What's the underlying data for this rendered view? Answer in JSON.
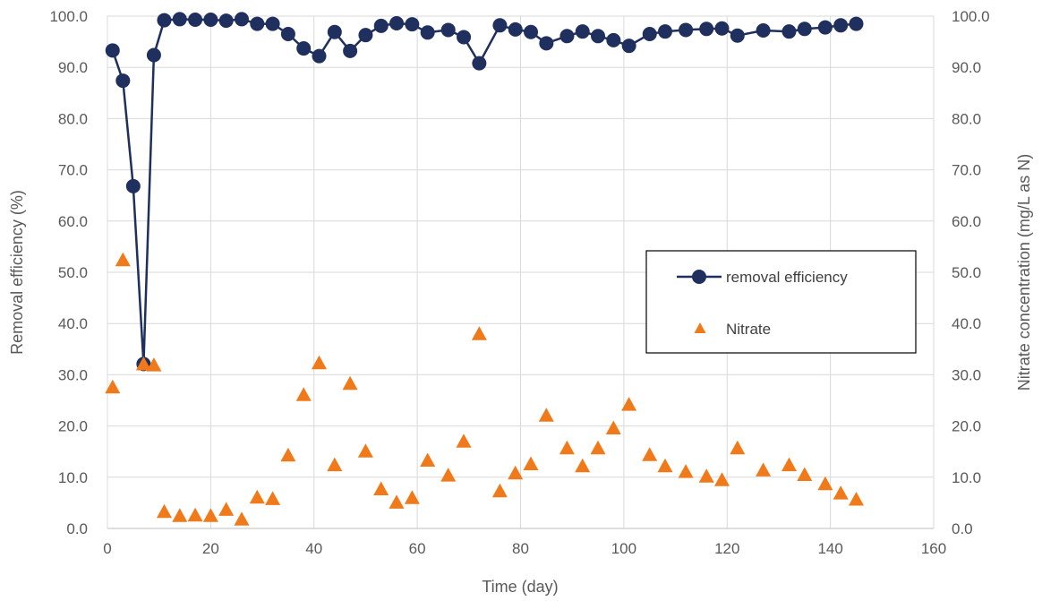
{
  "chart_data": {
    "type": "line",
    "xlabel": "Time (day)",
    "ylabel": "Removal efficiency (%)",
    "y2label": "Nitrate concentration (mg/L as N)",
    "xlim": [
      0,
      160
    ],
    "ylim": [
      0,
      100
    ],
    "y2lim": [
      0,
      100
    ],
    "x_ticks": [
      "0",
      "20",
      "40",
      "60",
      "80",
      "100",
      "120",
      "140",
      "160"
    ],
    "y_ticks": [
      "0.0",
      "10.0",
      "20.0",
      "30.0",
      "40.0",
      "50.0",
      "60.0",
      "70.0",
      "80.0",
      "90.0",
      "100.0"
    ],
    "y2_ticks": [
      "0.0",
      "10.0",
      "20.0",
      "30.0",
      "40.0",
      "50.0",
      "60.0",
      "70.0",
      "80.0",
      "90.0",
      "100.0"
    ],
    "grid": true,
    "legend_position": "right-middle",
    "series": [
      {
        "name": "removal efficiency",
        "kind": "line-marker",
        "marker": "circle",
        "axis": "left",
        "color": "#1f2f5e",
        "x": [
          1,
          3,
          5,
          7,
          9,
          11,
          14,
          17,
          20,
          23,
          26,
          29,
          32,
          35,
          38,
          41,
          44,
          47,
          50,
          53,
          56,
          59,
          62,
          66,
          69,
          72,
          76,
          79,
          82,
          85,
          89,
          92,
          95,
          98,
          101,
          105,
          108,
          112,
          116,
          119,
          122,
          127,
          132,
          135,
          139,
          142,
          145
        ],
        "y": [
          93.3,
          87.4,
          66.8,
          32.1,
          92.4,
          99.2,
          99.4,
          99.3,
          99.3,
          99.1,
          99.4,
          98.5,
          98.5,
          96.5,
          93.7,
          92.2,
          96.9,
          93.2,
          96.3,
          98.1,
          98.6,
          98.4,
          96.8,
          97.3,
          95.9,
          90.8,
          98.2,
          97.4,
          96.9,
          94.7,
          96.1,
          97.0,
          96.1,
          95.3,
          94.2,
          96.5,
          97.0,
          97.3,
          97.5,
          97.6,
          96.2,
          97.2,
          97.0,
          97.5,
          97.8,
          98.2,
          98.5
        ]
      },
      {
        "name": "Nitrate",
        "kind": "scatter",
        "marker": "triangle",
        "axis": "right",
        "color": "#f07a1a",
        "x": [
          1,
          3,
          7,
          9,
          11,
          14,
          17,
          20,
          23,
          26,
          29,
          32,
          35,
          38,
          41,
          44,
          47,
          50,
          53,
          56,
          59,
          62,
          66,
          69,
          72,
          76,
          79,
          82,
          85,
          89,
          92,
          95,
          98,
          101,
          105,
          108,
          112,
          116,
          119,
          122,
          127,
          132,
          135,
          139,
          142,
          145
        ],
        "y": [
          27.5,
          52.3,
          32.0,
          31.8,
          3.2,
          2.4,
          2.5,
          2.4,
          3.6,
          1.7,
          6.0,
          5.7,
          14.2,
          26.0,
          32.2,
          12.3,
          28.2,
          15.0,
          7.6,
          5.0,
          5.9,
          13.2,
          10.3,
          16.9,
          37.9,
          7.2,
          10.7,
          12.5,
          22.0,
          15.6,
          12.1,
          15.6,
          19.5,
          24.1,
          14.3,
          12.1,
          11.0,
          10.1,
          9.4,
          15.6,
          11.3,
          12.3,
          10.4,
          8.6,
          6.8,
          5.6
        ]
      }
    ]
  }
}
